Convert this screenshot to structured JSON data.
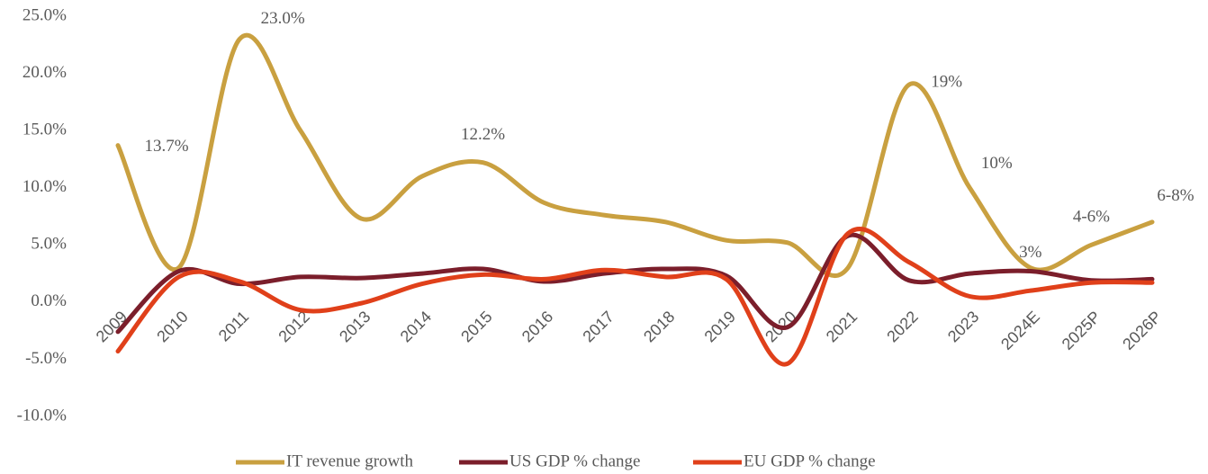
{
  "chart_data": {
    "type": "line",
    "categories": [
      "2009",
      "2010",
      "2011",
      "2012",
      "2013",
      "2014",
      "2015",
      "2016",
      "2017",
      "2018",
      "2019",
      "2020",
      "2021",
      "2022",
      "2023",
      "2024E",
      "2025P",
      "2026P"
    ],
    "series": [
      {
        "name": "IT revenue growth",
        "color": "#c9a040",
        "values": [
          13.7,
          3.0,
          23.0,
          15.0,
          7.3,
          11.0,
          12.2,
          8.7,
          7.6,
          7.0,
          5.4,
          5.2,
          3.0,
          19,
          10,
          3,
          5,
          7
        ],
        "value_labels": [
          "13.7%",
          null,
          "23.0%",
          null,
          null,
          null,
          "12.2%",
          null,
          null,
          null,
          null,
          null,
          null,
          "19%",
          "10%",
          "3%",
          "4-6%",
          "6-8%"
        ]
      },
      {
        "name": "US GDP % change",
        "color": "#7b1e2b",
        "values": [
          -2.6,
          2.7,
          1.6,
          2.2,
          2.1,
          2.5,
          2.9,
          1.8,
          2.5,
          2.9,
          2.3,
          -2.2,
          5.8,
          1.9,
          2.5,
          2.7,
          1.9,
          2.0
        ]
      },
      {
        "name": "EU GDP % change",
        "color": "#e0401a",
        "values": [
          -4.3,
          2.2,
          1.8,
          -0.7,
          -0.1,
          1.6,
          2.4,
          2.0,
          2.8,
          2.2,
          2.0,
          -5.4,
          6.0,
          3.5,
          0.5,
          1.0,
          1.7,
          1.7
        ]
      }
    ],
    "ylim": [
      -10,
      25
    ],
    "yticks": [
      {
        "value": -10,
        "label": "-10.0%"
      },
      {
        "value": -5,
        "label": "-5.0%"
      },
      {
        "value": 0,
        "label": "0.0%"
      },
      {
        "value": 5,
        "label": "5.0%"
      },
      {
        "value": 10,
        "label": "10.0%"
      },
      {
        "value": 15,
        "label": "15.0%"
      },
      {
        "value": 20,
        "label": "20.0%"
      },
      {
        "value": 25,
        "label": "25.0%"
      }
    ],
    "grid": false,
    "legend": "bottom"
  }
}
